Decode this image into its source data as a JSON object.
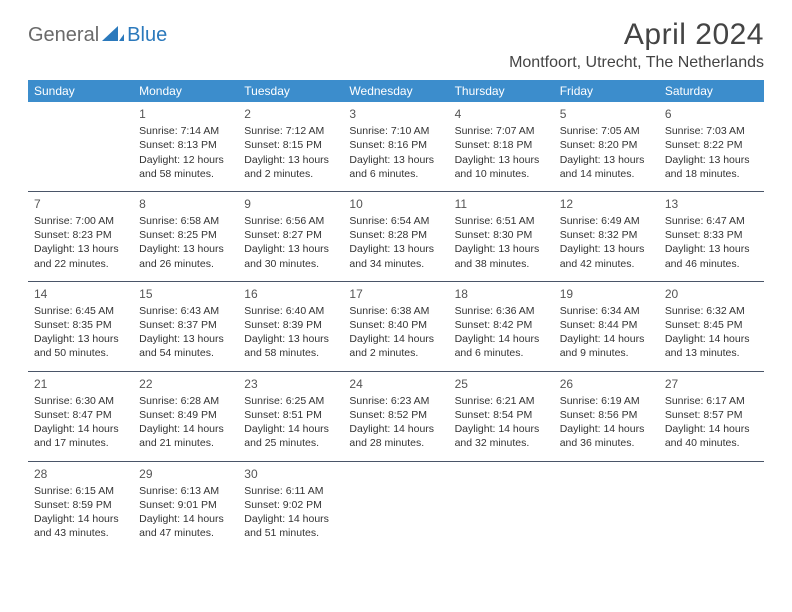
{
  "logo": {
    "text1": "General",
    "text2": "Blue",
    "color_gray": "#6a6a6a",
    "color_blue": "#2b79bc"
  },
  "title": {
    "month_year": "April 2024",
    "location": "Montfoort, Utrecht, The Netherlands"
  },
  "styling": {
    "header_bg": "#3c8dcc",
    "header_text": "#ffffff",
    "cell_border": "#4a5568",
    "body_text": "#333333",
    "daynum_color": "#555555",
    "background": "#ffffff",
    "font_family": "Arial",
    "title_fontsize": 30,
    "location_fontsize": 16,
    "header_fontsize": 12,
    "cell_fontsize": 10.5
  },
  "columns": [
    "Sunday",
    "Monday",
    "Tuesday",
    "Wednesday",
    "Thursday",
    "Friday",
    "Saturday"
  ],
  "weeks": [
    [
      {
        "blank": true
      },
      {
        "day": "1",
        "sunrise": "Sunrise: 7:14 AM",
        "sunset": "Sunset: 8:13 PM",
        "dl1": "Daylight: 12 hours",
        "dl2": "and 58 minutes."
      },
      {
        "day": "2",
        "sunrise": "Sunrise: 7:12 AM",
        "sunset": "Sunset: 8:15 PM",
        "dl1": "Daylight: 13 hours",
        "dl2": "and 2 minutes."
      },
      {
        "day": "3",
        "sunrise": "Sunrise: 7:10 AM",
        "sunset": "Sunset: 8:16 PM",
        "dl1": "Daylight: 13 hours",
        "dl2": "and 6 minutes."
      },
      {
        "day": "4",
        "sunrise": "Sunrise: 7:07 AM",
        "sunset": "Sunset: 8:18 PM",
        "dl1": "Daylight: 13 hours",
        "dl2": "and 10 minutes."
      },
      {
        "day": "5",
        "sunrise": "Sunrise: 7:05 AM",
        "sunset": "Sunset: 8:20 PM",
        "dl1": "Daylight: 13 hours",
        "dl2": "and 14 minutes."
      },
      {
        "day": "6",
        "sunrise": "Sunrise: 7:03 AM",
        "sunset": "Sunset: 8:22 PM",
        "dl1": "Daylight: 13 hours",
        "dl2": "and 18 minutes."
      }
    ],
    [
      {
        "day": "7",
        "sunrise": "Sunrise: 7:00 AM",
        "sunset": "Sunset: 8:23 PM",
        "dl1": "Daylight: 13 hours",
        "dl2": "and 22 minutes."
      },
      {
        "day": "8",
        "sunrise": "Sunrise: 6:58 AM",
        "sunset": "Sunset: 8:25 PM",
        "dl1": "Daylight: 13 hours",
        "dl2": "and 26 minutes."
      },
      {
        "day": "9",
        "sunrise": "Sunrise: 6:56 AM",
        "sunset": "Sunset: 8:27 PM",
        "dl1": "Daylight: 13 hours",
        "dl2": "and 30 minutes."
      },
      {
        "day": "10",
        "sunrise": "Sunrise: 6:54 AM",
        "sunset": "Sunset: 8:28 PM",
        "dl1": "Daylight: 13 hours",
        "dl2": "and 34 minutes."
      },
      {
        "day": "11",
        "sunrise": "Sunrise: 6:51 AM",
        "sunset": "Sunset: 8:30 PM",
        "dl1": "Daylight: 13 hours",
        "dl2": "and 38 minutes."
      },
      {
        "day": "12",
        "sunrise": "Sunrise: 6:49 AM",
        "sunset": "Sunset: 8:32 PM",
        "dl1": "Daylight: 13 hours",
        "dl2": "and 42 minutes."
      },
      {
        "day": "13",
        "sunrise": "Sunrise: 6:47 AM",
        "sunset": "Sunset: 8:33 PM",
        "dl1": "Daylight: 13 hours",
        "dl2": "and 46 minutes."
      }
    ],
    [
      {
        "day": "14",
        "sunrise": "Sunrise: 6:45 AM",
        "sunset": "Sunset: 8:35 PM",
        "dl1": "Daylight: 13 hours",
        "dl2": "and 50 minutes."
      },
      {
        "day": "15",
        "sunrise": "Sunrise: 6:43 AM",
        "sunset": "Sunset: 8:37 PM",
        "dl1": "Daylight: 13 hours",
        "dl2": "and 54 minutes."
      },
      {
        "day": "16",
        "sunrise": "Sunrise: 6:40 AM",
        "sunset": "Sunset: 8:39 PM",
        "dl1": "Daylight: 13 hours",
        "dl2": "and 58 minutes."
      },
      {
        "day": "17",
        "sunrise": "Sunrise: 6:38 AM",
        "sunset": "Sunset: 8:40 PM",
        "dl1": "Daylight: 14 hours",
        "dl2": "and 2 minutes."
      },
      {
        "day": "18",
        "sunrise": "Sunrise: 6:36 AM",
        "sunset": "Sunset: 8:42 PM",
        "dl1": "Daylight: 14 hours",
        "dl2": "and 6 minutes."
      },
      {
        "day": "19",
        "sunrise": "Sunrise: 6:34 AM",
        "sunset": "Sunset: 8:44 PM",
        "dl1": "Daylight: 14 hours",
        "dl2": "and 9 minutes."
      },
      {
        "day": "20",
        "sunrise": "Sunrise: 6:32 AM",
        "sunset": "Sunset: 8:45 PM",
        "dl1": "Daylight: 14 hours",
        "dl2": "and 13 minutes."
      }
    ],
    [
      {
        "day": "21",
        "sunrise": "Sunrise: 6:30 AM",
        "sunset": "Sunset: 8:47 PM",
        "dl1": "Daylight: 14 hours",
        "dl2": "and 17 minutes."
      },
      {
        "day": "22",
        "sunrise": "Sunrise: 6:28 AM",
        "sunset": "Sunset: 8:49 PM",
        "dl1": "Daylight: 14 hours",
        "dl2": "and 21 minutes."
      },
      {
        "day": "23",
        "sunrise": "Sunrise: 6:25 AM",
        "sunset": "Sunset: 8:51 PM",
        "dl1": "Daylight: 14 hours",
        "dl2": "and 25 minutes."
      },
      {
        "day": "24",
        "sunrise": "Sunrise: 6:23 AM",
        "sunset": "Sunset: 8:52 PM",
        "dl1": "Daylight: 14 hours",
        "dl2": "and 28 minutes."
      },
      {
        "day": "25",
        "sunrise": "Sunrise: 6:21 AM",
        "sunset": "Sunset: 8:54 PM",
        "dl1": "Daylight: 14 hours",
        "dl2": "and 32 minutes."
      },
      {
        "day": "26",
        "sunrise": "Sunrise: 6:19 AM",
        "sunset": "Sunset: 8:56 PM",
        "dl1": "Daylight: 14 hours",
        "dl2": "and 36 minutes."
      },
      {
        "day": "27",
        "sunrise": "Sunrise: 6:17 AM",
        "sunset": "Sunset: 8:57 PM",
        "dl1": "Daylight: 14 hours",
        "dl2": "and 40 minutes."
      }
    ],
    [
      {
        "day": "28",
        "sunrise": "Sunrise: 6:15 AM",
        "sunset": "Sunset: 8:59 PM",
        "dl1": "Daylight: 14 hours",
        "dl2": "and 43 minutes."
      },
      {
        "day": "29",
        "sunrise": "Sunrise: 6:13 AM",
        "sunset": "Sunset: 9:01 PM",
        "dl1": "Daylight: 14 hours",
        "dl2": "and 47 minutes."
      },
      {
        "day": "30",
        "sunrise": "Sunrise: 6:11 AM",
        "sunset": "Sunset: 9:02 PM",
        "dl1": "Daylight: 14 hours",
        "dl2": "and 51 minutes."
      },
      {
        "blank": true
      },
      {
        "blank": true
      },
      {
        "blank": true
      },
      {
        "blank": true
      }
    ]
  ]
}
